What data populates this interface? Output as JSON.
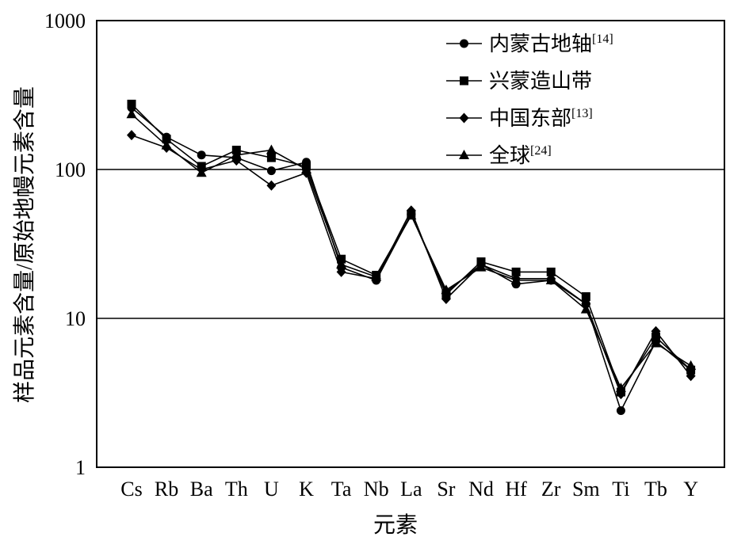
{
  "chart_data": {
    "type": "line",
    "xlabel": "元素",
    "ylabel": "样品元素含量/原始地幔元素含量",
    "yscale": "log",
    "ylim": [
      1,
      1000
    ],
    "yticks": [
      "1",
      "10",
      "100",
      "1000"
    ],
    "grid": "horizontal lines at 10 and 100",
    "legend_position": "top-right",
    "categories": [
      "Cs",
      "Rb",
      "Ba",
      "Th",
      "U",
      "K",
      "Ta",
      "Nb",
      "La",
      "Sr",
      "Nd",
      "Hf",
      "Zr",
      "Sm",
      "Ti",
      "Tb",
      "Y"
    ],
    "series": [
      {
        "name": "内蒙古地轴",
        "ref": "[14]",
        "marker": "circle",
        "values": [
          260,
          165,
          125,
          120,
          98,
          112,
          22,
          18,
          50,
          15,
          23,
          17,
          18,
          12.5,
          2.4,
          7.0,
          4.5
        ]
      },
      {
        "name": "兴蒙造山带",
        "ref": "",
        "marker": "square",
        "values": [
          275,
          160,
          105,
          135,
          120,
          105,
          25,
          19.5,
          50,
          14.5,
          24,
          20.5,
          20.5,
          14,
          3.2,
          7.5,
          4.5
        ]
      },
      {
        "name": "中国东部",
        "ref": "[13]",
        "marker": "diamond",
        "values": [
          170,
          140,
          100,
          115,
          78,
          95,
          20.5,
          18.5,
          53,
          13.5,
          23,
          18.5,
          18.5,
          12.5,
          3.1,
          8.2,
          4.1
        ]
      },
      {
        "name": "全球",
        "ref": "[24]",
        "marker": "triangle",
        "values": [
          235,
          145,
          95,
          125,
          135,
          100,
          23,
          19,
          49,
          15.5,
          22,
          18,
          18,
          11.5,
          3.4,
          6.8,
          4.8
        ]
      }
    ]
  }
}
